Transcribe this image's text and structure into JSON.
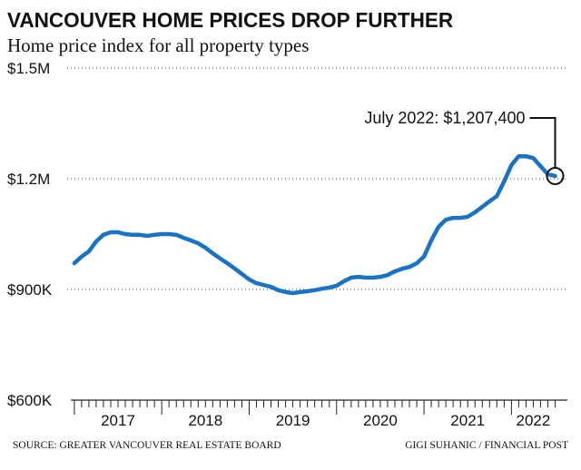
{
  "chart_data": {
    "type": "line",
    "title": "VANCOUVER HOME PRICES DROP FURTHER",
    "subtitle": "Home price index for all property types",
    "source": "SOURCE: GREATER VANCOUVER REAL ESTATE BOARD",
    "credit": "GIGI SUHANIC / FINANCIAL POST",
    "annotation": "July 2022: $1,207,400",
    "color": "#1a72c2",
    "grid": true,
    "x": [
      2017,
      2017.083,
      2017.167,
      2017.25,
      2017.333,
      2017.417,
      2017.5,
      2017.583,
      2017.667,
      2017.75,
      2017.833,
      2017.917,
      2018,
      2018.083,
      2018.167,
      2018.25,
      2018.333,
      2018.417,
      2018.5,
      2018.583,
      2018.667,
      2018.75,
      2018.833,
      2018.917,
      2019,
      2019.083,
      2019.167,
      2019.25,
      2019.333,
      2019.417,
      2019.5,
      2019.583,
      2019.667,
      2019.75,
      2019.833,
      2019.917,
      2020,
      2020.083,
      2020.167,
      2020.25,
      2020.333,
      2020.417,
      2020.5,
      2020.583,
      2020.667,
      2020.75,
      2020.833,
      2020.917,
      2021,
      2021.083,
      2021.167,
      2021.25,
      2021.333,
      2021.417,
      2021.5,
      2021.583,
      2021.667,
      2021.75,
      2021.833,
      2021.917,
      2022,
      2022.083,
      2022.167,
      2022.25,
      2022.333,
      2022.417,
      2022.5
    ],
    "values": [
      971000,
      989000,
      1003000,
      1030000,
      1048000,
      1055000,
      1055000,
      1050000,
      1048000,
      1048000,
      1045000,
      1048000,
      1050000,
      1050000,
      1048000,
      1040000,
      1033000,
      1025000,
      1013000,
      998000,
      984000,
      971000,
      957000,
      942000,
      927000,
      917000,
      912000,
      907000,
      898000,
      893000,
      890000,
      893000,
      895000,
      898000,
      902000,
      905000,
      910000,
      922000,
      932000,
      934000,
      932000,
      932000,
      934000,
      939000,
      949000,
      956000,
      961000,
      971000,
      989000,
      1033000,
      1070000,
      1089000,
      1094000,
      1094000,
      1097000,
      1109000,
      1124000,
      1139000,
      1153000,
      1193000,
      1237000,
      1261000,
      1261000,
      1256000,
      1234000,
      1212000,
      1207400
    ],
    "xlim": [
      2016.96,
      2022.64
    ],
    "xticks": [
      {
        "value": 2017.5,
        "label": "2017"
      },
      {
        "value": 2018.5,
        "label": "2018"
      },
      {
        "value": 2019.5,
        "label": "2019"
      },
      {
        "value": 2020.5,
        "label": "2020"
      },
      {
        "value": 2021.5,
        "label": "2021"
      },
      {
        "value": 2022.25,
        "label": "2022"
      }
    ],
    "ylim": [
      600000,
      1500000
    ],
    "yticks": [
      {
        "value": 600000,
        "label": "$600K"
      },
      {
        "value": 900000,
        "label": "$900K"
      },
      {
        "value": 1200000,
        "label": "$1.2M"
      },
      {
        "value": 1500000,
        "label": "$1.5M"
      }
    ]
  }
}
